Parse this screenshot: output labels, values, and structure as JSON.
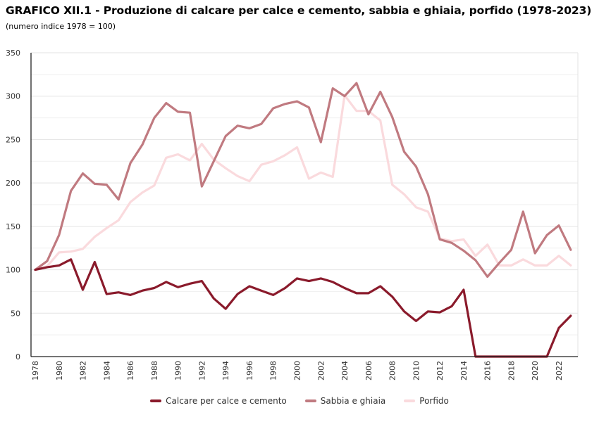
{
  "title": "GRAFICO XII.1 - Produzione di calcare per calce e cemento, sabbia e ghiaia, porfido (1978-2023)",
  "subtitle": "(numero indice 1978 = 100)",
  "chart_data": {
    "type": "line",
    "title": "GRAFICO XII.1 - Produzione di calcare per calce e cemento, sabbia e ghiaia, porfido (1978-2023)",
    "subtitle": "(numero indice 1978 = 100)",
    "xlabel": "",
    "ylabel": "",
    "x": [
      1978,
      1979,
      1980,
      1981,
      1982,
      1983,
      1984,
      1985,
      1986,
      1987,
      1988,
      1989,
      1990,
      1991,
      1992,
      1993,
      1994,
      1995,
      1996,
      1997,
      1998,
      1999,
      2000,
      2001,
      2002,
      2003,
      2004,
      2005,
      2006,
      2007,
      2008,
      2009,
      2010,
      2011,
      2012,
      2013,
      2014,
      2015,
      2016,
      2017,
      2018,
      2019,
      2020,
      2021,
      2022,
      2023
    ],
    "x_tick_labels": [
      "1978",
      "1980",
      "1982",
      "1984",
      "1986",
      "1988",
      "1990",
      "1992",
      "1994",
      "1996",
      "1998",
      "2000",
      "2002",
      "2004",
      "2006",
      "2008",
      "2010",
      "2012",
      "2014",
      "2016",
      "2018",
      "2020",
      "2022"
    ],
    "ylim": [
      0,
      350
    ],
    "y_ticks": [
      0,
      50,
      100,
      150,
      200,
      250,
      300,
      350
    ],
    "grid": true,
    "legend_position": "bottom",
    "series": [
      {
        "name": "Calcare per calce e cemento",
        "color": "#8a1a2b",
        "values": [
          100,
          103,
          105,
          112,
          77,
          109,
          72,
          74,
          71,
          76,
          79,
          86,
          80,
          84,
          87,
          67,
          55,
          72,
          81,
          76,
          71,
          79,
          90,
          87,
          90,
          86,
          79,
          73,
          73,
          81,
          69,
          52,
          41,
          52,
          51,
          58,
          77,
          0,
          0,
          0,
          0,
          0,
          0,
          0,
          33,
          47
        ]
      },
      {
        "name": "Sabbia e ghiaia",
        "color": "#c07a80",
        "values": [
          100,
          110,
          140,
          191,
          211,
          199,
          198,
          181,
          223,
          244,
          275,
          292,
          282,
          281,
          196,
          225,
          254,
          266,
          263,
          268,
          286,
          291,
          294,
          287,
          247,
          309,
          300,
          315,
          279,
          305,
          276,
          236,
          219,
          187,
          135,
          131,
          122,
          111,
          92,
          108,
          123,
          167,
          119,
          140,
          151,
          123
        ]
      },
      {
        "name": "Porfido",
        "color": "#fadadd",
        "values": [
          100,
          104,
          120,
          121,
          124,
          138,
          148,
          157,
          178,
          189,
          197,
          229,
          233,
          226,
          245,
          227,
          217,
          208,
          202,
          221,
          225,
          232,
          241,
          205,
          212,
          207,
          301,
          283,
          283,
          272,
          198,
          187,
          172,
          167,
          136,
          133,
          135,
          116,
          129,
          105,
          105,
          112,
          105,
          105,
          116,
          105
        ]
      }
    ]
  }
}
